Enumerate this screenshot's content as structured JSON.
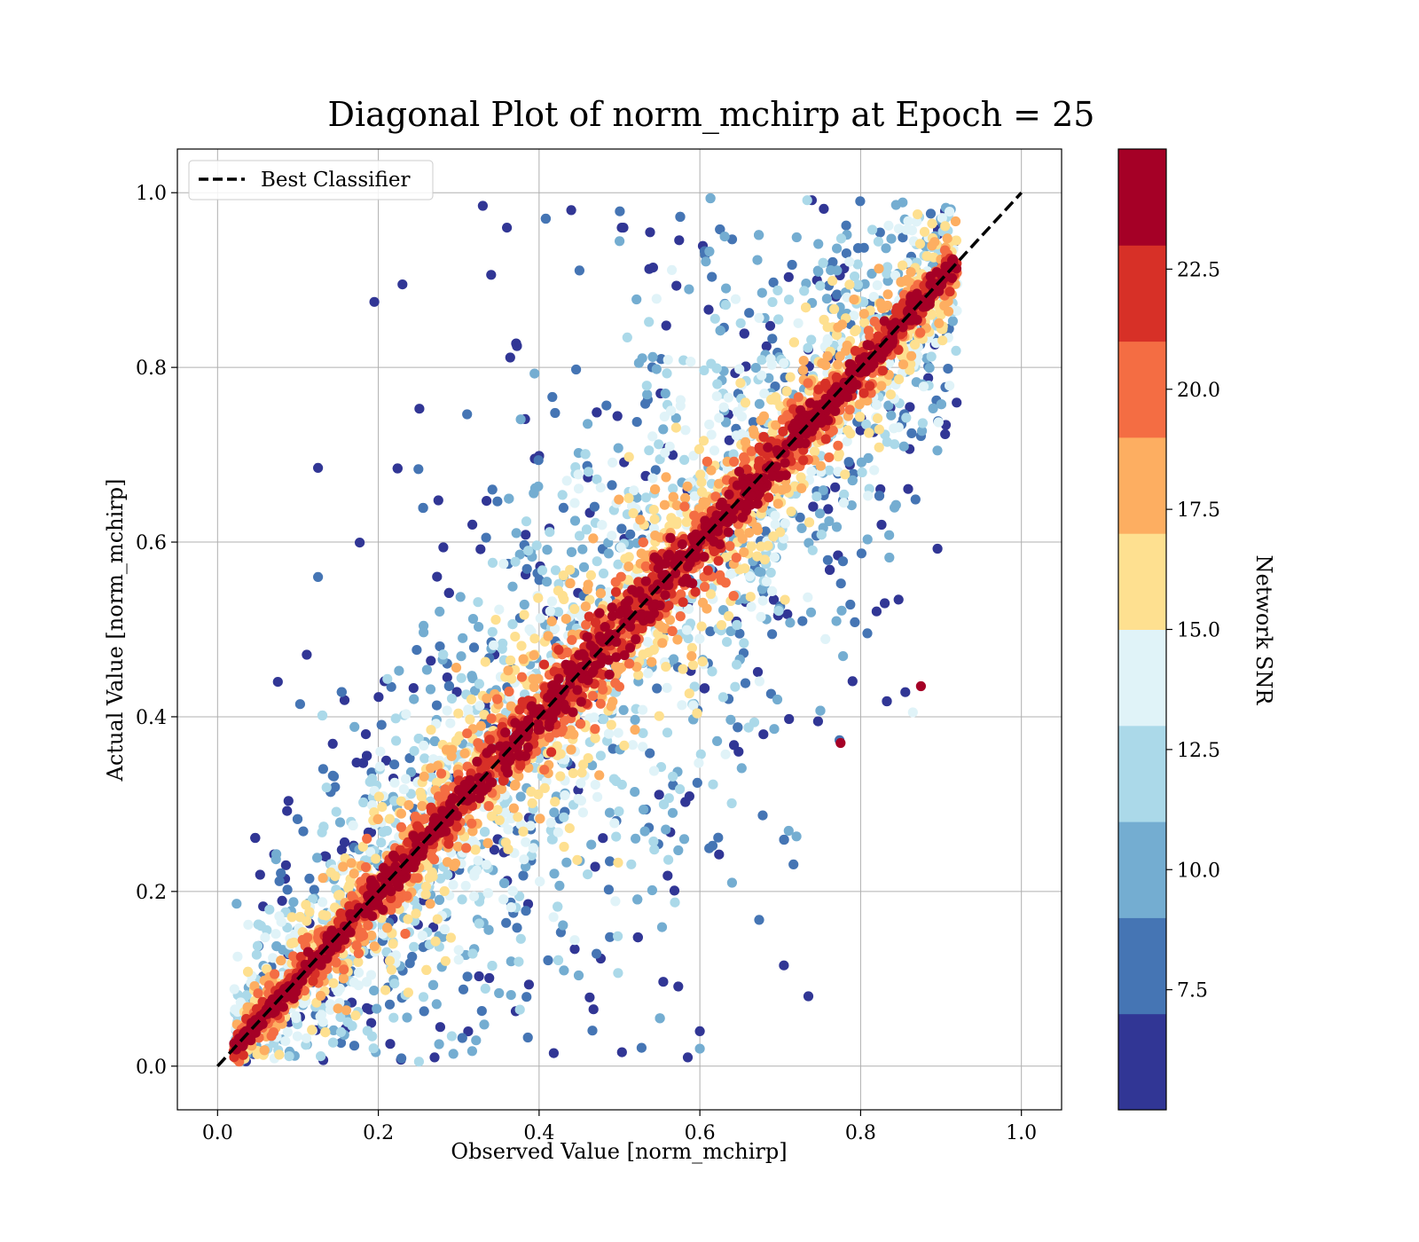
{
  "chart_data": {
    "type": "scatter",
    "title": "Diagonal Plot of norm_mchirp at Epoch = 25",
    "xlabel": "Observed Value [norm_mchirp]",
    "ylabel": "Actual Value [norm_mchirp]",
    "xlim": [
      -0.05,
      1.05
    ],
    "ylim": [
      -0.05,
      1.05
    ],
    "xticks": [
      "0.0",
      "0.2",
      "0.4",
      "0.6",
      "0.8",
      "1.0"
    ],
    "yticks": [
      "0.0",
      "0.2",
      "0.4",
      "0.6",
      "0.8",
      "1.0"
    ],
    "grid": true,
    "legend": {
      "placement": "upper-left",
      "entries": [
        {
          "label": "Best Classifier",
          "style": "dashed",
          "color": "#000000"
        }
      ]
    },
    "reference_line": {
      "label": "Best Classifier",
      "x": [
        0.0,
        1.0
      ],
      "y": [
        0.0,
        1.0
      ]
    },
    "colorbar": {
      "label": "Network SNR",
      "range": [
        5.0,
        25.0
      ],
      "ticks": [
        "7.5",
        "10.0",
        "12.5",
        "15.0",
        "17.5",
        "20.0",
        "22.5"
      ],
      "colors": [
        "#313695",
        "#4575b4",
        "#74add1",
        "#abd9e9",
        "#e0f3f8",
        "#fee090",
        "#fdae61",
        "#f46d43",
        "#d73027",
        "#a50026"
      ]
    },
    "series_note_points": [
      {
        "x": 0.33,
        "y": 0.985,
        "snr": 6
      },
      {
        "x": 0.44,
        "y": 0.98,
        "snr": 6
      },
      {
        "x": 0.125,
        "y": 0.685,
        "snr": 6
      },
      {
        "x": 0.075,
        "y": 0.44,
        "snr": 6
      },
      {
        "x": 0.735,
        "y": 0.08,
        "snr": 6
      },
      {
        "x": 0.585,
        "y": 0.01,
        "snr": 6
      },
      {
        "x": 0.875,
        "y": 0.435,
        "snr": 24
      },
      {
        "x": 0.775,
        "y": 0.37,
        "snr": 24
      },
      {
        "x": 0.865,
        "y": 0.405,
        "snr": 13
      },
      {
        "x": 0.83,
        "y": 0.53,
        "snr": 6
      },
      {
        "x": 0.125,
        "y": 0.56,
        "snr": 8
      },
      {
        "x": 0.195,
        "y": 0.875,
        "snr": 6
      },
      {
        "x": 0.23,
        "y": 0.895,
        "snr": 6
      },
      {
        "x": 0.36,
        "y": 0.96,
        "snr": 6
      },
      {
        "x": 0.505,
        "y": 0.96,
        "snr": 6
      },
      {
        "x": 0.27,
        "y": 0.01,
        "snr": 6
      },
      {
        "x": 0.6,
        "y": 0.04,
        "snr": 6
      },
      {
        "x": 0.6,
        "y": 0.02,
        "snr": 10
      },
      {
        "x": 0.64,
        "y": 0.21,
        "snr": 10
      },
      {
        "x": 0.085,
        "y": 0.23,
        "snr": 6
      }
    ],
    "distribution": {
      "n_points": 6500,
      "x_range": [
        0.02,
        0.92
      ],
      "residual_std_by_snr": "decreasing with SNR: high-SNR points tightly along y = x, low-SNR points scattered widely"
    }
  }
}
